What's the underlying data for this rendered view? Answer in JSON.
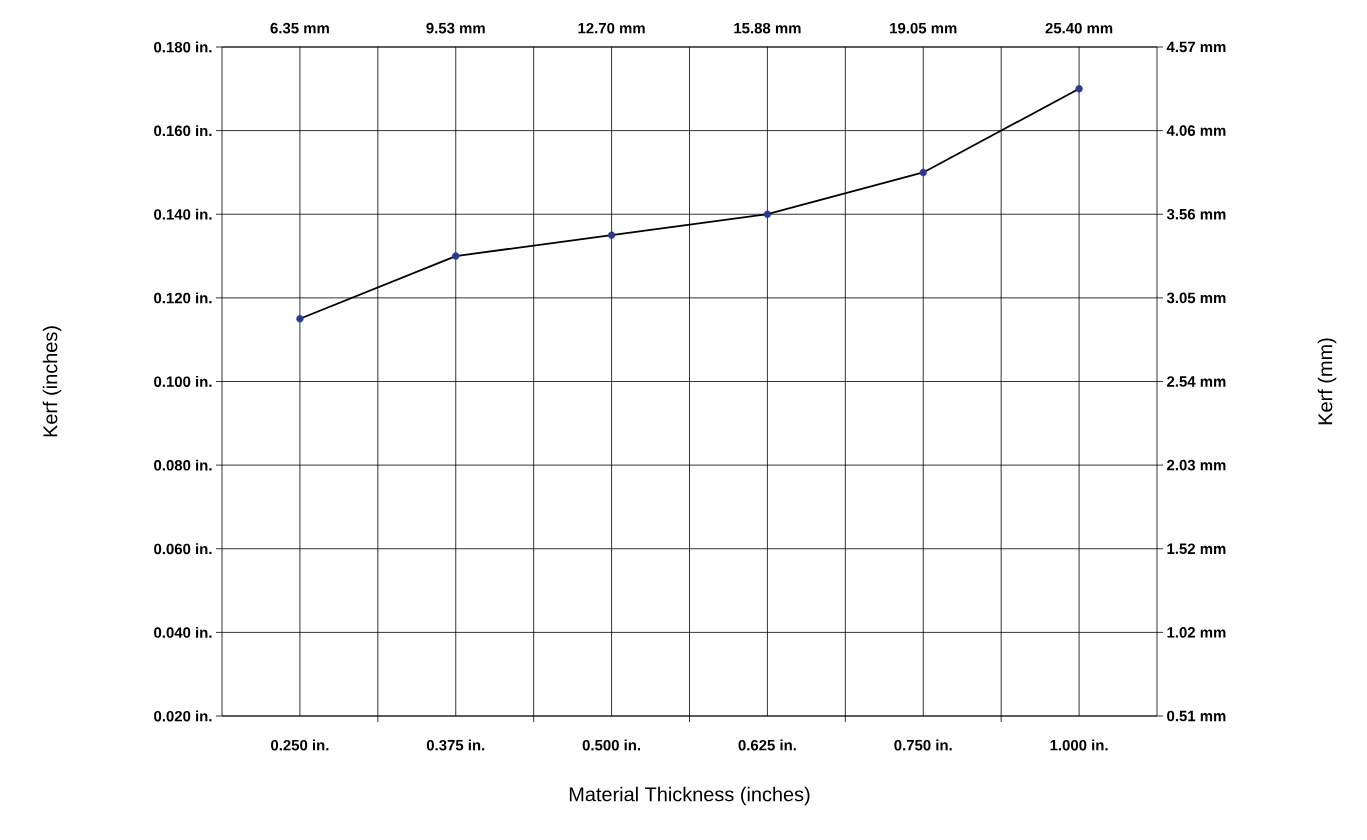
{
  "chart_data": {
    "type": "line",
    "xlabel": "Material Thickness (inches)",
    "ylabel": "Kerf (inches)",
    "y2label": "Kerf (mm)",
    "categories": [
      "0.250 in.",
      "0.375 in.",
      "0.500 in.",
      "0.625 in.",
      "0.750 in.",
      "1.000 in."
    ],
    "annotations": [
      "6.35 mm",
      "9.53 mm",
      "12.70 mm",
      "15.88 mm",
      "19.05 mm",
      "25.40 mm"
    ],
    "series": [
      {
        "color": "#000000",
        "colors": [
          "#2b3990",
          "#2b3990",
          "#2b3990",
          "#2b3990",
          "#2b3990",
          "#2b3990"
        ],
        "values": [
          0.115,
          0.13,
          0.135,
          0.14,
          0.15,
          0.17
        ]
      }
    ],
    "ylim": [
      0.02,
      0.18
    ],
    "yticks": [
      {
        "value": 0.02,
        "label": "0.020 in."
      },
      {
        "value": 0.04,
        "label": "0.040 in."
      },
      {
        "value": 0.06,
        "label": "0.060 in."
      },
      {
        "value": 0.08,
        "label": "0.080 in."
      },
      {
        "value": 0.1,
        "label": "0.100 in."
      },
      {
        "value": 0.12,
        "label": "0.120 in."
      },
      {
        "value": 0.14,
        "label": "0.140 in."
      },
      {
        "value": 0.16,
        "label": "0.160 in."
      },
      {
        "value": 0.18,
        "label": "0.180 in."
      }
    ],
    "y2lim": [
      0.508,
      4.572
    ],
    "y2ticks": [
      {
        "value": 0.508,
        "label": "0.51 mm"
      },
      {
        "value": 1.016,
        "label": "1.02 mm"
      },
      {
        "value": 1.524,
        "label": "1.52 mm"
      },
      {
        "value": 2.032,
        "label": "2.03 mm"
      },
      {
        "value": 2.54,
        "label": "2.54 mm"
      },
      {
        "value": 3.048,
        "label": "3.05 mm"
      },
      {
        "value": 3.556,
        "label": "3.56 mm"
      },
      {
        "value": 4.064,
        "label": "4.06 mm"
      },
      {
        "value": 4.572,
        "label": "4.57 mm"
      }
    ],
    "grid": true,
    "marker": "circle",
    "line_style": "solid"
  }
}
